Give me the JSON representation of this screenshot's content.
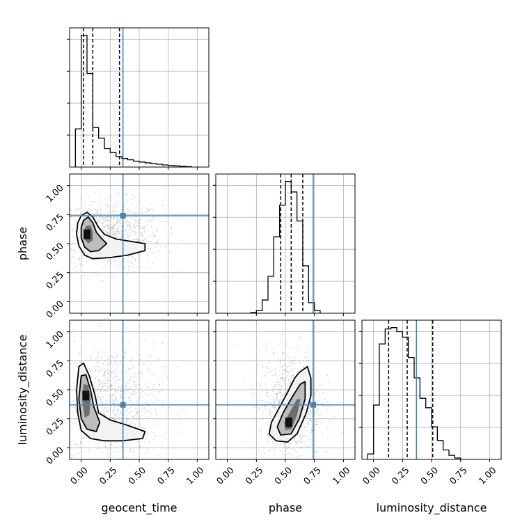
{
  "chart_data": {
    "type": "corner",
    "parameters": [
      "geocent_time",
      "phase",
      "luminosity_distance"
    ],
    "axis_range": [
      -0.1,
      1.1
    ],
    "ticks": [
      0.0,
      0.25,
      0.5,
      0.75,
      1.0
    ],
    "tick_labels": [
      "0.00",
      "0.25",
      "0.50",
      "0.75",
      "1.00"
    ],
    "grid": true,
    "injection": {
      "geocent_time": 0.36,
      "phase": 0.74,
      "luminosity_distance": 0.37
    },
    "colors": {
      "injection": "#4682b4",
      "hist": "#000000",
      "quantile": "#000000",
      "grid": "#b0b0b0",
      "points": "#444444"
    },
    "histograms": [
      {
        "parameter": "geocent_time",
        "bin_start": -0.05,
        "bin_width": 0.05,
        "counts": [
          29,
          100,
          71,
          30,
          22,
          14,
          11,
          8,
          6.5,
          5.5,
          4.5,
          3.8,
          3.2,
          2.6,
          2.1,
          1.6,
          1.2,
          0.9,
          0.6,
          0.3
        ],
        "quantiles": [
          0.02,
          0.1,
          0.33
        ]
      },
      {
        "parameter": "phase",
        "bin_start": 0.2,
        "bin_width": 0.05,
        "counts": [
          0.5,
          2,
          10,
          28,
          58,
          82,
          100,
          92,
          70,
          36,
          8,
          2
        ],
        "quantiles": [
          0.46,
          0.55,
          0.65
        ]
      },
      {
        "parameter": "luminosity_distance",
        "bin_start": -0.05,
        "bin_width": 0.05,
        "counts": [
          4,
          40,
          85,
          96,
          97,
          94,
          90,
          75,
          60,
          45,
          38,
          24,
          14,
          7,
          3,
          1
        ],
        "quantiles": [
          0.13,
          0.29,
          0.51
        ]
      }
    ],
    "pairs": [
      {
        "x": "geocent_time",
        "y": "phase",
        "peak": [
          0.05,
          0.58
        ],
        "contours": [
          [
            [
              0.0,
              0.74
            ],
            [
              0.05,
              0.77
            ],
            [
              0.1,
              0.73
            ],
            [
              0.15,
              0.64
            ],
            [
              0.2,
              0.58
            ],
            [
              0.3,
              0.54
            ],
            [
              0.42,
              0.52
            ],
            [
              0.55,
              0.5
            ],
            [
              0.55,
              0.44
            ],
            [
              0.4,
              0.4
            ],
            [
              0.25,
              0.38
            ],
            [
              0.1,
              0.37
            ],
            [
              0.03,
              0.4
            ],
            [
              -0.02,
              0.48
            ],
            [
              -0.04,
              0.58
            ],
            [
              -0.03,
              0.68
            ]
          ],
          [
            [
              0.02,
              0.7
            ],
            [
              0.06,
              0.73
            ],
            [
              0.1,
              0.68
            ],
            [
              0.13,
              0.6
            ],
            [
              0.17,
              0.55
            ],
            [
              0.22,
              0.5
            ],
            [
              0.15,
              0.44
            ],
            [
              0.08,
              0.43
            ],
            [
              0.03,
              0.47
            ],
            [
              0.0,
              0.55
            ],
            [
              0.0,
              0.64
            ]
          ],
          [
            [
              0.04,
              0.65
            ],
            [
              0.08,
              0.66
            ],
            [
              0.1,
              0.6
            ],
            [
              0.1,
              0.53
            ],
            [
              0.06,
              0.5
            ],
            [
              0.03,
              0.54
            ],
            [
              0.02,
              0.6
            ]
          ]
        ]
      },
      {
        "x": "geocent_time",
        "y": "luminosity_distance",
        "peak": [
          0.04,
          0.45
        ],
        "contours": [
          [
            [
              -0.02,
              0.7
            ],
            [
              0.02,
              0.73
            ],
            [
              0.07,
              0.62
            ],
            [
              0.12,
              0.45
            ],
            [
              0.15,
              0.3
            ],
            [
              0.25,
              0.24
            ],
            [
              0.38,
              0.2
            ],
            [
              0.55,
              0.14
            ],
            [
              0.53,
              0.08
            ],
            [
              0.35,
              0.06
            ],
            [
              0.2,
              0.06
            ],
            [
              0.08,
              0.08
            ],
            [
              0.0,
              0.15
            ],
            [
              -0.03,
              0.3
            ],
            [
              -0.04,
              0.5
            ]
          ],
          [
            [
              0.0,
              0.62
            ],
            [
              0.04,
              0.63
            ],
            [
              0.08,
              0.5
            ],
            [
              0.11,
              0.35
            ],
            [
              0.16,
              0.22
            ],
            [
              0.13,
              0.14
            ],
            [
              0.05,
              0.16
            ],
            [
              0.0,
              0.25
            ],
            [
              -0.02,
              0.42
            ]
          ],
          [
            [
              0.02,
              0.55
            ],
            [
              0.06,
              0.54
            ],
            [
              0.08,
              0.42
            ],
            [
              0.07,
              0.28
            ],
            [
              0.03,
              0.26
            ],
            [
              0.01,
              0.4
            ]
          ]
        ]
      },
      {
        "x": "phase",
        "y": "luminosity_distance",
        "peak": [
          0.53,
          0.22
        ],
        "contours": [
          [
            [
              0.62,
              0.65
            ],
            [
              0.69,
              0.7
            ],
            [
              0.72,
              0.6
            ],
            [
              0.72,
              0.45
            ],
            [
              0.68,
              0.3
            ],
            [
              0.6,
              0.12
            ],
            [
              0.52,
              0.05
            ],
            [
              0.42,
              0.06
            ],
            [
              0.36,
              0.12
            ],
            [
              0.38,
              0.22
            ],
            [
              0.45,
              0.35
            ],
            [
              0.52,
              0.48
            ],
            [
              0.58,
              0.6
            ]
          ],
          [
            [
              0.63,
              0.55
            ],
            [
              0.67,
              0.57
            ],
            [
              0.67,
              0.42
            ],
            [
              0.62,
              0.25
            ],
            [
              0.55,
              0.12
            ],
            [
              0.46,
              0.11
            ],
            [
              0.43,
              0.18
            ],
            [
              0.48,
              0.3
            ],
            [
              0.56,
              0.44
            ]
          ],
          [
            [
              0.6,
              0.42
            ],
            [
              0.63,
              0.42
            ],
            [
              0.6,
              0.28
            ],
            [
              0.55,
              0.16
            ],
            [
              0.5,
              0.15
            ],
            [
              0.49,
              0.22
            ],
            [
              0.55,
              0.33
            ]
          ]
        ]
      }
    ]
  }
}
